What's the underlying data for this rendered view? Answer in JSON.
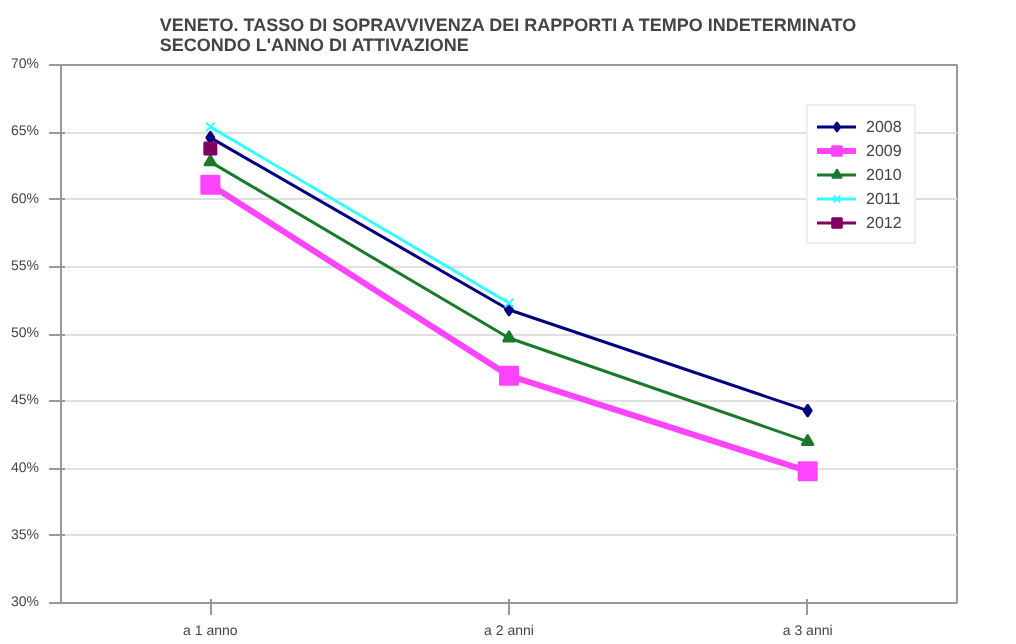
{
  "chart_data": {
    "type": "line",
    "title": "VENETO. TASSO DI SOPRAVVIVENZA DEI RAPPORTI A TEMPO INDETERMINATO\nSECONDO L'ANNO DI ATTIVAZIONE",
    "categories": [
      "a 1 anno",
      "a 2 anni",
      "a 3 anni"
    ],
    "series": [
      {
        "name": "2008",
        "color": "#000080",
        "values": [
          64.6,
          51.8,
          44.3
        ],
        "marker": "diamond"
      },
      {
        "name": "2009",
        "color": "#ff44ff",
        "values": [
          61.1,
          46.9,
          39.8
        ],
        "marker": "square"
      },
      {
        "name": "2010",
        "color": "#1a7a2a",
        "values": [
          62.8,
          49.7,
          42.0
        ],
        "marker": "triangle"
      },
      {
        "name": "2011",
        "color": "#33ffff",
        "values": [
          65.4,
          52.3,
          null
        ],
        "marker": "cross"
      },
      {
        "name": "2012",
        "color": "#800060",
        "values": [
          63.8,
          null,
          null
        ],
        "marker": "square"
      }
    ],
    "ylim": [
      30,
      70
    ],
    "yticks": [
      {
        "value": 30,
        "label": "30%"
      },
      {
        "value": 35,
        "label": "35%"
      },
      {
        "value": 40,
        "label": "40%"
      },
      {
        "value": 45,
        "label": "45%"
      },
      {
        "value": 50,
        "label": "50%"
      },
      {
        "value": 55,
        "label": "55%"
      },
      {
        "value": 60,
        "label": "60%"
      },
      {
        "value": 65,
        "label": "65%"
      },
      {
        "value": 70,
        "label": "70%"
      }
    ],
    "grid": "y",
    "legend": "top right",
    "line_style": "solid"
  }
}
